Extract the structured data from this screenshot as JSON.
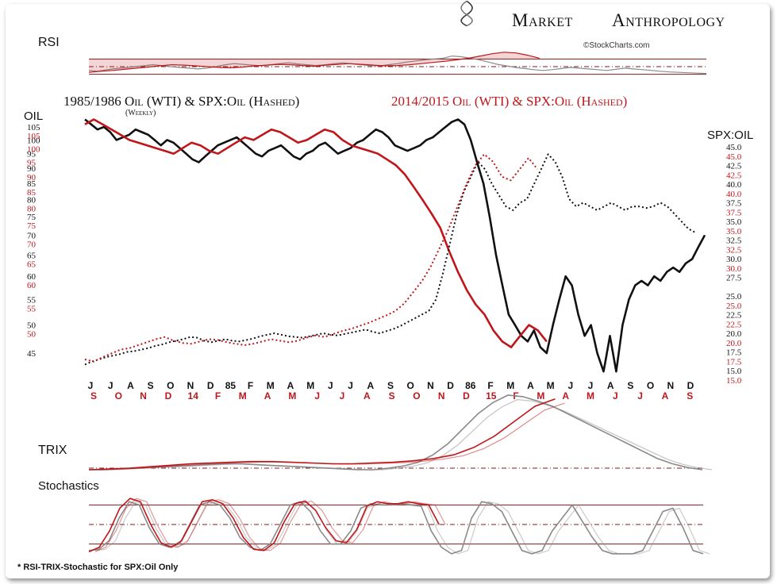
{
  "header": {
    "brand_left": "Market",
    "brand_right": "Anthropology",
    "credit": "©StockCharts.com",
    "footnote": "* RSI-TRIX-Stochastic for SPX:Oil Only"
  },
  "colors": {
    "black_series": "#111111",
    "red_series": "#c0161b",
    "ref_line": "#7a1c1c"
  },
  "chart_data": [
    {
      "type": "line",
      "title": "RSI",
      "ylim": [
        0,
        100
      ],
      "reference_lines": [
        70,
        50,
        30
      ],
      "series": [
        {
          "color": "#8a8a8a",
          "values": [
            40,
            38,
            42,
            45,
            47,
            50,
            52,
            55,
            53,
            50,
            48,
            46,
            44,
            46,
            50,
            55,
            58,
            56,
            54,
            52,
            55,
            58,
            60,
            57,
            55,
            53,
            55,
            58,
            60,
            57,
            55,
            53,
            52,
            55,
            58,
            62,
            65,
            68,
            70,
            72,
            78,
            76,
            72,
            68,
            62,
            56,
            52,
            48,
            45,
            42,
            40,
            42,
            45,
            48,
            46,
            44,
            42,
            40,
            43,
            46,
            44,
            42,
            40,
            38,
            36,
            35,
            34,
            33,
            32
          ]
        },
        {
          "color": "#c0161b",
          "values": [
            35,
            38,
            40,
            43,
            46,
            49,
            52,
            55,
            54,
            52,
            50,
            48,
            47,
            49,
            52,
            54,
            56,
            55,
            53,
            51,
            54,
            56,
            58,
            56,
            54,
            52,
            53,
            55,
            58,
            61,
            64,
            68,
            72,
            78,
            84,
            88,
            86,
            80,
            72
          ]
        }
      ]
    },
    {
      "type": "line",
      "title": "1985/1986 Oil (WTI) & SPX:Oil (Hashed)",
      "subtitle": "(Weekly)",
      "title_red": "2014/2015 Oil (WTI) & SPX:Oil (Hashed)",
      "left_axis_label": "OIL",
      "right_axis_label": "SPX:OIL",
      "left_scale": "log",
      "left_ticks": [
        105,
        100,
        95,
        90,
        85,
        80,
        75,
        70,
        65,
        60,
        55,
        50,
        45
      ],
      "left_ticks_red": [
        105,
        100,
        95,
        90,
        85,
        80,
        75,
        70,
        65,
        60,
        55,
        50
      ],
      "right_ticks": [
        45.0,
        42.5,
        40.0,
        37.5,
        35.0,
        32.5,
        30.0,
        27.5,
        25.0,
        22.5,
        20.0,
        17.5,
        15.0
      ],
      "right_ticks_red": [
        45.0,
        42.5,
        40.0,
        37.5,
        35.0,
        32.5,
        30.0,
        25.0,
        22.5,
        20.0,
        17.5,
        15.0
      ],
      "months_black": [
        "J",
        "J",
        "A",
        "S",
        "O",
        "N",
        "D",
        "85",
        "F",
        "M",
        "A",
        "M",
        "J",
        "J",
        "A",
        "S",
        "O",
        "N",
        "D",
        "86",
        "F",
        "M",
        "A",
        "M",
        "J",
        "J",
        "A",
        "S",
        "O",
        "N",
        "D"
      ],
      "months_red": [
        "S",
        "O",
        "N",
        "D",
        "14",
        "F",
        "M",
        "A",
        "M",
        "J",
        "J",
        "A",
        "S",
        "O",
        "N",
        "D",
        "15",
        "F",
        "M",
        "A",
        "M",
        "J",
        "J",
        "A",
        "S"
      ],
      "series": [
        {
          "name": "1985/1986 Oil (WTI)",
          "style": "solid",
          "color": "#111111",
          "axis": "left",
          "values": [
            108,
            106,
            104,
            105,
            103,
            100,
            101,
            102,
            104,
            103,
            102,
            100,
            98,
            100,
            99,
            97,
            95,
            93,
            92,
            94,
            96,
            98,
            99,
            100,
            101,
            99,
            97,
            95,
            94,
            96,
            97,
            98,
            96,
            94,
            93,
            95,
            96,
            98,
            99,
            97,
            95,
            96,
            97,
            99,
            100,
            102,
            104,
            103,
            101,
            98,
            97,
            96,
            97,
            98,
            100,
            101,
            103,
            105,
            107,
            108,
            106,
            100,
            92,
            85,
            75,
            65,
            58,
            52,
            50,
            48,
            47,
            49,
            46,
            45,
            50,
            55,
            60,
            58,
            52,
            48,
            50,
            45,
            42,
            48,
            42,
            50,
            55,
            58,
            59,
            58,
            60,
            59,
            61,
            62,
            61,
            63,
            64,
            67,
            70
          ]
        },
        {
          "name": "2014/2015 Oil (WTI)",
          "style": "solid",
          "color": "#c0161b",
          "values": [
            106,
            108,
            106,
            104,
            102,
            100,
            99,
            98,
            97,
            96,
            95,
            97,
            99,
            98,
            96,
            95,
            97,
            99,
            101,
            100,
            102,
            104,
            103,
            101,
            99,
            100,
            102,
            104,
            103,
            100,
            98,
            97,
            96,
            95,
            93,
            91,
            88,
            84,
            80,
            76,
            72,
            66,
            61,
            57,
            54,
            52,
            49,
            47,
            46,
            48,
            50,
            49,
            47
          ]
        },
        {
          "name": "1985/1986 SPX:Oil",
          "style": "dotted",
          "color": "#111111",
          "axis": "right",
          "values": [
            15.8,
            16.2,
            16.5,
            16.8,
            17.0,
            17.2,
            17.5,
            17.6,
            17.8,
            18.0,
            18.3,
            18.5,
            18.8,
            19.0,
            19.2,
            19.5,
            19.4,
            19.0,
            18.8,
            19.0,
            19.2,
            19.0,
            18.9,
            19.1,
            19.3,
            19.6,
            19.8,
            20.0,
            19.8,
            19.6,
            19.5,
            19.4,
            19.6,
            19.8,
            20.0,
            19.8,
            19.7,
            19.9,
            20.1,
            20.3,
            20.5,
            20.2,
            20.0,
            20.3,
            20.6,
            21.0,
            21.5,
            22.0,
            22.5,
            23.0,
            24.5,
            28.0,
            32.0,
            36.0,
            39.0,
            41.0,
            43.0,
            42.0,
            40.0,
            38.5,
            37.0,
            36.5,
            37.5,
            38.0,
            40.0,
            42.0,
            44.0,
            43.0,
            41.0,
            38.0,
            37.0,
            37.5,
            37.0,
            36.5,
            37.0,
            37.5,
            37.0,
            36.5,
            37.0,
            37.0,
            36.8,
            37.0,
            37.5,
            37.0,
            36.0,
            35.0,
            34.0,
            33.5
          ]
        },
        {
          "name": "2014/2015 SPX:Oil",
          "style": "dotted",
          "color": "#c0161b",
          "values": [
            16.5,
            16.2,
            16.8,
            17.3,
            17.8,
            18.0,
            18.4,
            18.8,
            19.2,
            19.5,
            19.0,
            18.7,
            18.6,
            18.9,
            19.2,
            19.1,
            18.8,
            18.6,
            18.4,
            18.6,
            18.9,
            19.2,
            19.0,
            18.8,
            19.0,
            19.4,
            19.7,
            19.5,
            19.9,
            20.3,
            20.6,
            21.0,
            21.4,
            21.9,
            22.4,
            23.0,
            24.0,
            25.5,
            27.0,
            29.0,
            31.5,
            34.0,
            37.0,
            40.0,
            42.5,
            44.0,
            43.0,
            41.0,
            40.5,
            42.0,
            43.5,
            42.0
          ]
        }
      ]
    },
    {
      "type": "line",
      "title": "TRIX",
      "series": [
        {
          "color": "#8a8a8a",
          "values": [
            0.0,
            0.0,
            0.01,
            0.02,
            0.03,
            0.04,
            0.05,
            0.06,
            0.07,
            0.08,
            0.08,
            0.07,
            0.06,
            0.05,
            0.04,
            0.03,
            0.02,
            0.01,
            0.0,
            0.0,
            0.02,
            0.05,
            0.1,
            0.2,
            0.35,
            0.55,
            0.75,
            0.9,
            1.0,
            0.98,
            0.92,
            0.85,
            0.75,
            0.65,
            0.55,
            0.45,
            0.35,
            0.25,
            0.15,
            0.08,
            0.03,
            0.0
          ]
        },
        {
          "color": "#c0161b",
          "values": [
            0.0,
            0.01,
            0.02,
            0.04,
            0.06,
            0.08,
            0.09,
            0.1,
            0.11,
            0.11,
            0.1,
            0.09,
            0.08,
            0.08,
            0.09,
            0.1,
            0.12,
            0.15,
            0.2,
            0.3,
            0.45,
            0.65,
            0.85,
            0.95
          ]
        }
      ]
    },
    {
      "type": "line",
      "title": "Stochastics",
      "ylim": [
        0,
        100
      ],
      "reference_lines": [
        80,
        50,
        20
      ],
      "series": [
        {
          "color": "#8a8a8a",
          "values": [
            10,
            12,
            25,
            60,
            85,
            80,
            45,
            20,
            15,
            20,
            50,
            80,
            85,
            80,
            60,
            30,
            15,
            10,
            20,
            50,
            80,
            85,
            70,
            40,
            20,
            20,
            40,
            75,
            82,
            80,
            80,
            82,
            80,
            78,
            40,
            15,
            5,
            10,
            60,
            85,
            82,
            70,
            40,
            10,
            5,
            10,
            40,
            60,
            80,
            55,
            30,
            10,
            5,
            5,
            5,
            10,
            40,
            70,
            75,
            45,
            10,
            5
          ]
        },
        {
          "color": "#c0161b",
          "values": [
            8,
            15,
            40,
            75,
            90,
            85,
            50,
            22,
            15,
            25,
            55,
            85,
            88,
            82,
            60,
            30,
            12,
            10,
            22,
            55,
            82,
            86,
            72,
            45,
            25,
            22,
            42,
            78,
            85,
            82,
            82,
            85,
            82,
            80,
            50
          ]
        }
      ]
    }
  ]
}
